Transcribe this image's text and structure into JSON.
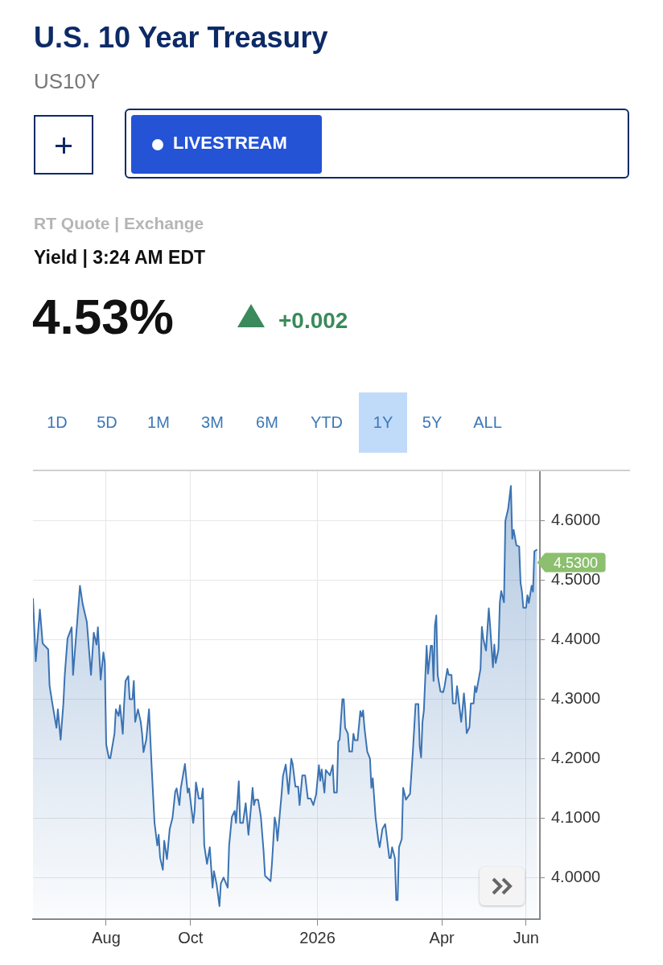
{
  "chart_data": {
    "type": "area",
    "title": "U.S. 10 Year Treasury",
    "subtitle": "US10Y",
    "annotations": [
      "LIVESTREAM",
      "RT Quote | Exchange",
      "Yield | 3:24 AM EDT",
      "4.53%",
      "+0.002",
      "1D",
      "5D",
      "1M",
      "3M",
      "6M",
      "YTD",
      "1Y",
      "5Y",
      "ALL",
      {
        "text": "4.5300",
        "x": "2026-06-09",
        "y": 4.53
      }
    ],
    "xlim": [
      "2025-06-09",
      "2026-06-11"
    ],
    "xticks": [
      {
        "value": "2025-08-01",
        "label": "Aug"
      },
      {
        "value": "2025-10-01",
        "label": "Oct"
      },
      {
        "value": "2026-01-01",
        "label": "2026"
      },
      {
        "value": "2026-04-01",
        "label": "Apr"
      },
      {
        "value": "2026-06-01",
        "label": "Jun"
      }
    ],
    "ylim": [
      3.93,
      4.685
    ],
    "yticks": [
      {
        "value": 4.0,
        "label": "4.0000"
      },
      {
        "value": 4.1,
        "label": "4.1000"
      },
      {
        "value": 4.2,
        "label": "4.2000"
      },
      {
        "value": 4.3,
        "label": "4.3000"
      },
      {
        "value": 4.4,
        "label": "4.4000"
      },
      {
        "value": 4.5,
        "label": "4.5000"
      },
      {
        "value": 4.6,
        "label": "4.6000"
      }
    ],
    "grid": true,
    "legend": false,
    "marker": "none",
    "line_style": "solid",
    "series": [
      {
        "color": "#3b73b3",
        "x": [
          "2025-06-09",
          "2025-06-11",
          "2025-06-14",
          "2025-06-16",
          "2025-06-20",
          "2025-06-21",
          "2025-06-23",
          "2025-06-26",
          "2025-06-27",
          "2025-06-29",
          "2025-07-01",
          "2025-07-02",
          "2025-07-04",
          "2025-07-07",
          "2025-07-08",
          "2025-07-11",
          "2025-07-13",
          "2025-07-15",
          "2025-07-18",
          "2025-07-21",
          "2025-07-23",
          "2025-07-25",
          "2025-07-26",
          "2025-07-28",
          "2025-07-30",
          "2025-07-31",
          "2025-08-01",
          "2025-08-03",
          "2025-08-04",
          "2025-08-07",
          "2025-08-08",
          "2025-08-10",
          "2025-08-11",
          "2025-08-13",
          "2025-08-14",
          "2025-08-15",
          "2025-08-17",
          "2025-08-18",
          "2025-08-20",
          "2025-08-21",
          "2025-08-22",
          "2025-08-24",
          "2025-08-26",
          "2025-08-27",
          "2025-08-28",
          "2025-08-30",
          "2025-09-01",
          "2025-09-03",
          "2025-09-05",
          "2025-09-07",
          "2025-09-08",
          "2025-09-09",
          "2025-09-11",
          "2025-09-12",
          "2025-09-14",
          "2025-09-16",
          "2025-09-18",
          "2025-09-20",
          "2025-09-21",
          "2025-09-23",
          "2025-09-24",
          "2025-09-27",
          "2025-09-29",
          "2025-09-30",
          "2025-10-03",
          "2025-10-04",
          "2025-10-05",
          "2025-10-07",
          "2025-10-09",
          "2025-10-10",
          "2025-10-11",
          "2025-10-13",
          "2025-10-15",
          "2025-10-17",
          "2025-10-18",
          "2025-10-20",
          "2025-10-22",
          "2025-10-23",
          "2025-10-25",
          "2025-10-28",
          "2025-10-29",
          "2025-10-31",
          "2025-11-02",
          "2025-11-03",
          "2025-11-05",
          "2025-11-06",
          "2025-11-08",
          "2025-11-10",
          "2025-11-12",
          "2025-11-14",
          "2025-11-15",
          "2025-11-16",
          "2025-11-17",
          "2025-11-19",
          "2025-11-21",
          "2025-11-23",
          "2025-11-24",
          "2025-11-28",
          "2025-11-29",
          "2025-12-01",
          "2025-12-02",
          "2025-12-03",
          "2025-12-06",
          "2025-12-07",
          "2025-12-09",
          "2025-12-11",
          "2025-12-13",
          "2025-12-14",
          "2025-12-16",
          "2025-12-18",
          "2025-12-19",
          "2025-12-21",
          "2025-12-23",
          "2025-12-25",
          "2025-12-27",
          "2025-12-29",
          "2025-12-31",
          "2026-01-02",
          "2026-01-03",
          "2026-01-04",
          "2026-01-06",
          "2026-01-07",
          "2026-01-10",
          "2026-01-12",
          "2026-01-13",
          "2026-01-15",
          "2026-01-16",
          "2026-01-17",
          "2026-01-19",
          "2026-01-20",
          "2026-01-21",
          "2026-01-23",
          "2026-01-24",
          "2026-01-26",
          "2026-01-27",
          "2026-01-28",
          "2026-01-30",
          "2026-02-01",
          "2026-02-02",
          "2026-02-03",
          "2026-02-04",
          "2026-02-06",
          "2026-02-08",
          "2026-02-09",
          "2026-02-10",
          "2026-02-12",
          "2026-02-14",
          "2026-02-15",
          "2026-02-17",
          "2026-02-19",
          "2026-02-22",
          "2026-02-23",
          "2026-02-24",
          "2026-02-26",
          "2026-02-27",
          "2026-02-28",
          "2026-03-01",
          "2026-03-03",
          "2026-03-04",
          "2026-03-06",
          "2026-03-09",
          "2026-03-11",
          "2026-03-13",
          "2026-03-15",
          "2026-03-16",
          "2026-03-17",
          "2026-03-18",
          "2026-03-19",
          "2026-03-21",
          "2026-03-22",
          "2026-03-24",
          "2026-03-25",
          "2026-03-26",
          "2026-03-27",
          "2026-03-28",
          "2026-03-29",
          "2026-03-31",
          "2026-04-02",
          "2026-04-03",
          "2026-04-05",
          "2026-04-06",
          "2026-04-08",
          "2026-04-09",
          "2026-04-11",
          "2026-04-12",
          "2026-04-13",
          "2026-04-15",
          "2026-04-16",
          "2026-04-17",
          "2026-04-18",
          "2026-04-19",
          "2026-04-21",
          "2026-04-22",
          "2026-04-24",
          "2026-04-25",
          "2026-04-26",
          "2026-04-29",
          "2026-04-30",
          "2026-05-01",
          "2026-05-03",
          "2026-05-05",
          "2026-05-06",
          "2026-05-08",
          "2026-05-09",
          "2026-05-10",
          "2026-05-12",
          "2026-05-13",
          "2026-05-14",
          "2026-05-16",
          "2026-05-17",
          "2026-05-19",
          "2026-05-21",
          "2026-05-22",
          "2026-05-23",
          "2026-05-25",
          "2026-05-27",
          "2026-05-28",
          "2026-05-29",
          "2026-05-30",
          "2026-06-01",
          "2026-06-02",
          "2026-06-03",
          "2026-06-05",
          "2026-06-06",
          "2026-06-07",
          "2026-06-09"
        ],
        "values": [
          4.47,
          4.364,
          4.451,
          4.394,
          4.384,
          4.323,
          4.293,
          4.252,
          4.283,
          4.232,
          4.293,
          4.341,
          4.402,
          4.421,
          4.341,
          4.43,
          4.491,
          4.46,
          4.43,
          4.341,
          4.412,
          4.392,
          4.421,
          4.333,
          4.379,
          4.361,
          4.224,
          4.201,
          4.201,
          4.242,
          4.283,
          4.272,
          4.29,
          4.242,
          4.293,
          4.331,
          4.339,
          4.3,
          4.3,
          4.331,
          4.262,
          4.283,
          4.262,
          4.242,
          4.211,
          4.232,
          4.283,
          4.182,
          4.092,
          4.054,
          4.072,
          4.034,
          4.013,
          4.062,
          4.031,
          4.082,
          4.1,
          4.145,
          4.15,
          4.122,
          4.15,
          4.191,
          4.143,
          4.15,
          4.092,
          4.112,
          4.16,
          4.133,
          4.133,
          4.15,
          4.054,
          4.023,
          4.051,
          3.983,
          4.011,
          3.988,
          3.952,
          3.99,
          4.0,
          3.983,
          4.054,
          4.102,
          4.112,
          4.092,
          4.162,
          4.092,
          4.092,
          4.125,
          4.072,
          4.122,
          4.151,
          4.122,
          4.131,
          4.131,
          4.102,
          4.043,
          4.003,
          3.994,
          4.023,
          4.101,
          4.09,
          4.062,
          4.141,
          4.171,
          4.19,
          4.141,
          4.2,
          4.191,
          4.153,
          4.153,
          4.122,
          4.172,
          4.172,
          4.133,
          4.133,
          4.122,
          4.14,
          4.189,
          4.163,
          4.182,
          4.143,
          4.181,
          4.172,
          4.189,
          4.143,
          4.143,
          4.229,
          4.232,
          4.3,
          4.3,
          4.252,
          4.242,
          4.212,
          4.212,
          4.242,
          4.231,
          4.231,
          4.28,
          4.271,
          4.281,
          4.252,
          4.212,
          4.2,
          4.151,
          4.167,
          4.102,
          4.063,
          4.051,
          4.082,
          4.09,
          4.033,
          4.033,
          4.051,
          4.033,
          3.962,
          3.962,
          4.051,
          4.065,
          4.151,
          4.131,
          4.141,
          4.211,
          4.292,
          4.292,
          4.221,
          4.202,
          4.262,
          4.281,
          4.39,
          4.343,
          4.39,
          4.39,
          4.331,
          4.424,
          4.441,
          4.341,
          4.313,
          4.312,
          4.322,
          4.351,
          4.341,
          4.341,
          4.293,
          4.293,
          4.322,
          4.303,
          4.262,
          4.283,
          4.31,
          4.283,
          4.243,
          4.253,
          4.293,
          4.293,
          4.322,
          4.312,
          4.351,
          4.422,
          4.402,
          4.382,
          4.453,
          4.422,
          4.354,
          4.392,
          4.361,
          4.384,
          4.463,
          4.482,
          4.463,
          4.6,
          4.62,
          4.659,
          4.57,
          4.585,
          4.559,
          4.557,
          4.496,
          4.481,
          4.454,
          4.454,
          4.475,
          4.462,
          4.491,
          4.481,
          4.549,
          4.552
        ]
      }
    ]
  }
}
